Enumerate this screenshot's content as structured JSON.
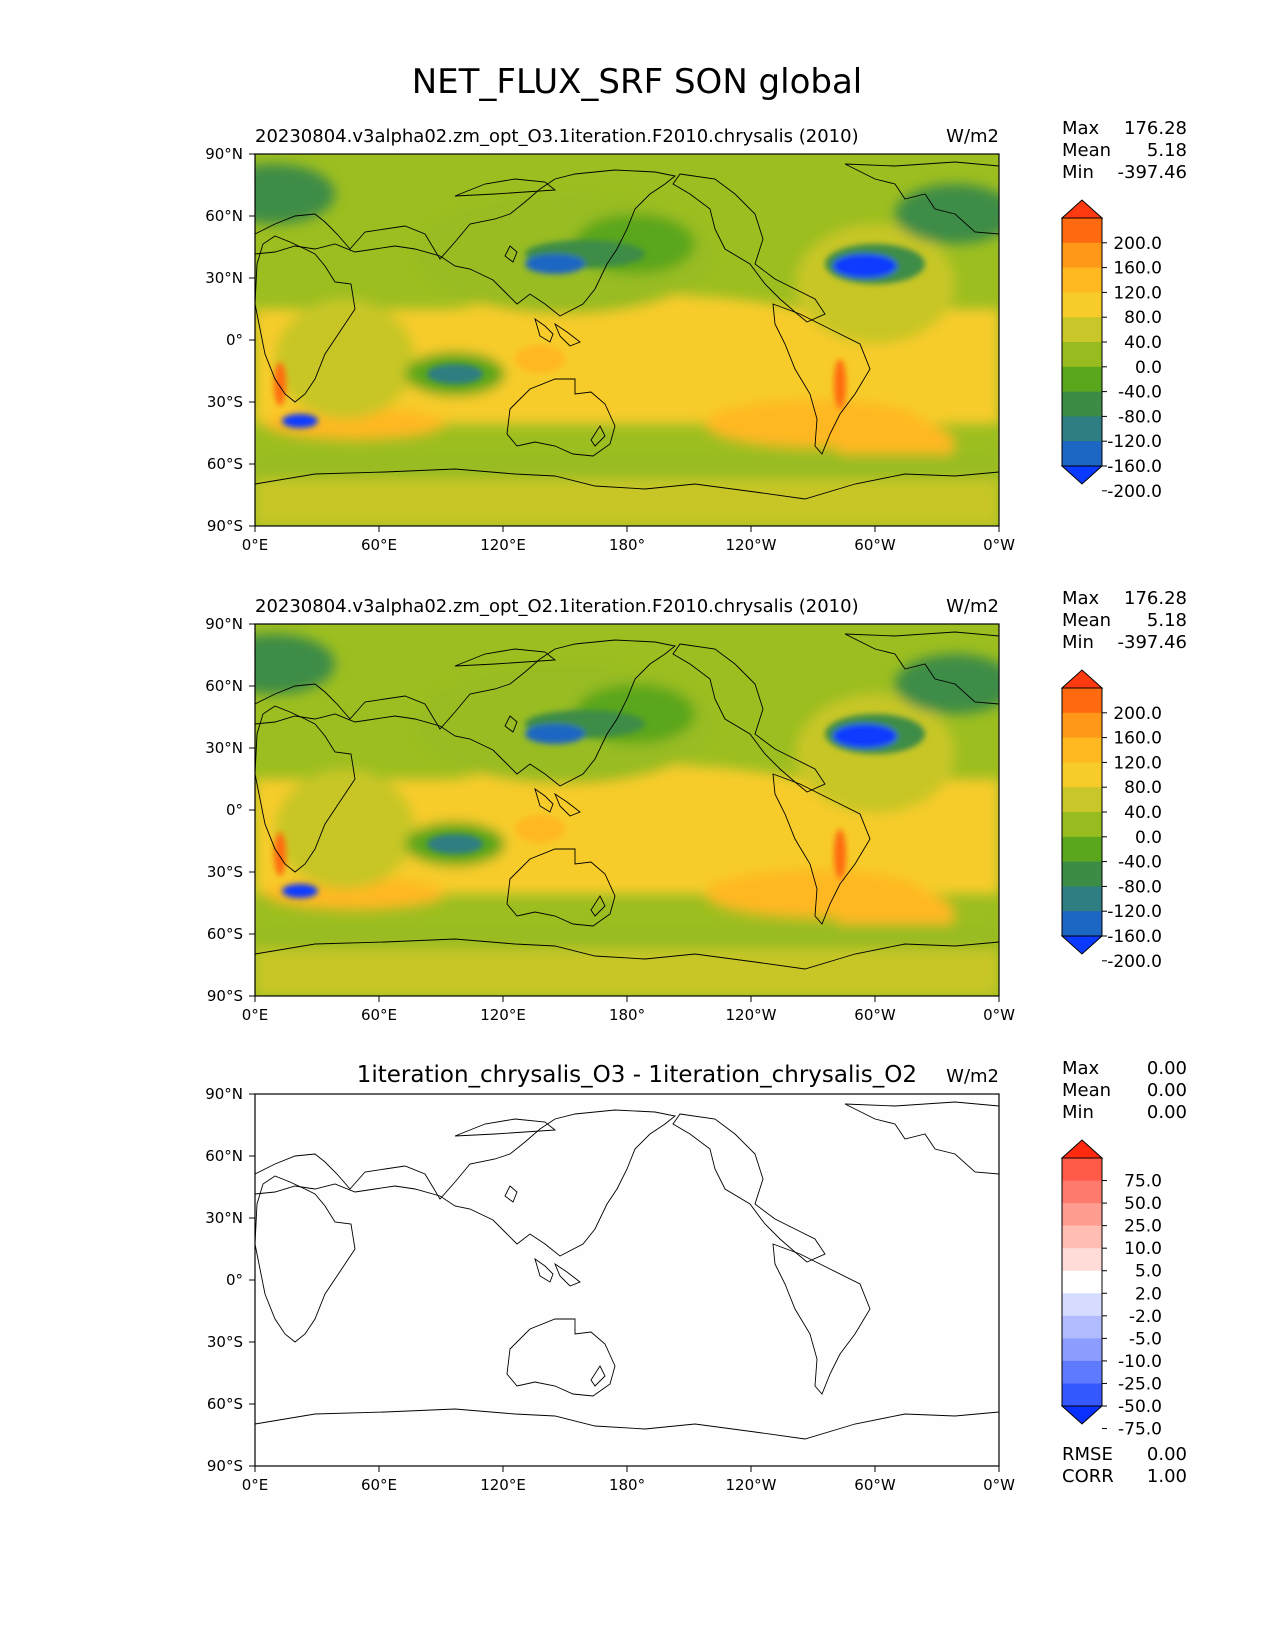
{
  "figure_title": "NET_FLUX_SRF SON global",
  "chart_data": [
    {
      "type": "heatmap",
      "title": "20230804.v3alpha02.zm_opt_O3.1iteration.F2010.chrysalis (2010)",
      "units": "W/m2",
      "xlabel": "",
      "ylabel": "",
      "x_ticks": [
        "0°E",
        "60°E",
        "120°E",
        "180°",
        "120°W",
        "60°W",
        "0°W"
      ],
      "y_ticks": [
        "90°N",
        "60°N",
        "30°N",
        "0°",
        "30°S",
        "60°S",
        "90°S"
      ],
      "xlim": [
        0,
        360
      ],
      "ylim": [
        -90,
        90
      ],
      "stats": [
        {
          "label": "Max",
          "value": "176.28"
        },
        {
          "label": "Mean",
          "value": "5.18"
        },
        {
          "label": "Min",
          "value": "-397.46"
        }
      ],
      "colorbar": {
        "levels": [
          "200.0",
          "160.0",
          "120.0",
          "80.0",
          "40.0",
          "0.0",
          "-40.0",
          "-80.0",
          "-120.0",
          "-160.0",
          "-200.0"
        ],
        "colors": [
          "#ff3a10",
          "#ff6a10",
          "#ff9818",
          "#ffb820",
          "#f7cc2a",
          "#c8c628",
          "#98bc20",
          "#5aa61c",
          "#3c8c46",
          "#2e7e82",
          "#1c66c4",
          "#0a3aff"
        ]
      }
    },
    {
      "type": "heatmap",
      "title": "20230804.v3alpha02.zm_opt_O2.1iteration.F2010.chrysalis (2010)",
      "units": "W/m2",
      "xlabel": "",
      "ylabel": "",
      "x_ticks": [
        "0°E",
        "60°E",
        "120°E",
        "180°",
        "120°W",
        "60°W",
        "0°W"
      ],
      "y_ticks": [
        "90°N",
        "60°N",
        "30°N",
        "0°",
        "30°S",
        "60°S",
        "90°S"
      ],
      "xlim": [
        0,
        360
      ],
      "ylim": [
        -90,
        90
      ],
      "stats": [
        {
          "label": "Max",
          "value": "176.28"
        },
        {
          "label": "Mean",
          "value": "5.18"
        },
        {
          "label": "Min",
          "value": "-397.46"
        }
      ],
      "colorbar": {
        "levels": [
          "200.0",
          "160.0",
          "120.0",
          "80.0",
          "40.0",
          "0.0",
          "-40.0",
          "-80.0",
          "-120.0",
          "-160.0",
          "-200.0"
        ],
        "colors": [
          "#ff3a10",
          "#ff6a10",
          "#ff9818",
          "#ffb820",
          "#f7cc2a",
          "#c8c628",
          "#98bc20",
          "#5aa61c",
          "#3c8c46",
          "#2e7e82",
          "#1c66c4",
          "#0a3aff"
        ]
      }
    },
    {
      "type": "heatmap",
      "title": "1iteration_chrysalis_O3 - 1iteration_chrysalis_O2",
      "units": "W/m2",
      "xlabel": "",
      "ylabel": "",
      "x_ticks": [
        "0°E",
        "60°E",
        "120°E",
        "180°",
        "120°W",
        "60°W",
        "0°W"
      ],
      "y_ticks": [
        "90°N",
        "60°N",
        "30°N",
        "0°",
        "30°S",
        "60°S",
        "90°S"
      ],
      "xlim": [
        0,
        360
      ],
      "ylim": [
        -90,
        90
      ],
      "stats": [
        {
          "label": "Max",
          "value": "0.00"
        },
        {
          "label": "Mean",
          "value": "0.00"
        },
        {
          "label": "Min",
          "value": "0.00"
        }
      ],
      "colorbar": {
        "levels": [
          "75.0",
          "50.0",
          "25.0",
          "10.0",
          "5.0",
          "2.0",
          "-2.0",
          "-5.0",
          "-10.0",
          "-25.0",
          "-50.0",
          "-75.0"
        ],
        "colors": [
          "#ff2a10",
          "#ff5a48",
          "#ff7a6c",
          "#ff9c90",
          "#ffbdb4",
          "#ffdcd8",
          "#ffffff",
          "#d6dcff",
          "#b0bcff",
          "#8c9cff",
          "#5e7aff",
          "#3658ff",
          "#0a30ff"
        ]
      },
      "footer_stats": [
        {
          "label": "RMSE",
          "value": "0.00"
        },
        {
          "label": "CORR",
          "value": "1.00"
        }
      ]
    }
  ]
}
